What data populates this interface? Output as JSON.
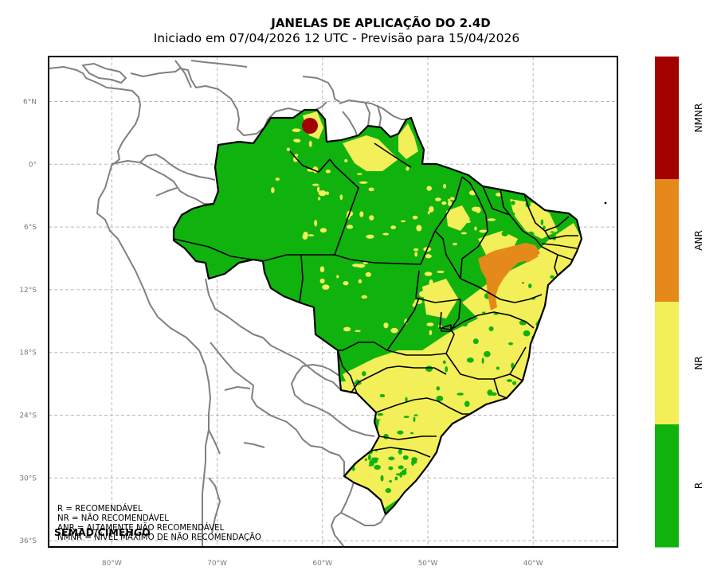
{
  "header": {
    "title": "JANELAS DE APLICAÇÃO DO 2.4D",
    "subtitle": "Iniciado em 07/04/2026 12 UTC - Previsão para 15/04/2026"
  },
  "axes": {
    "lat_labels": [
      "6°N",
      "0°",
      "6°S",
      "12°S",
      "18°S",
      "24°S",
      "30°S",
      "36°S"
    ],
    "lon_labels": [
      "80°W",
      "70°W",
      "60°W",
      "50°W",
      "40°W"
    ],
    "lat_values": [
      6,
      0,
      -6,
      -12,
      -18,
      -24,
      -30,
      -36
    ],
    "lon_values": [
      -80,
      -70,
      -60,
      -50,
      -40
    ],
    "lon_range": [
      -86,
      -32
    ],
    "lat_range": [
      -36.6,
      10.3
    ],
    "grid": true,
    "grid_style": "dashed"
  },
  "legend": {
    "lines": [
      "R = RECOMENDÁVEL",
      "NR = NÃO RECOMENDÁVEL",
      "ANR = ALTAMENTE NÃO RECOMENDÁVEL",
      "NMNR = NÍVEL MÁXIMO DE NÃO RECOMENDAÇÃO"
    ],
    "credit": "SEMAD/CIMEHGO"
  },
  "colorbar": {
    "categories": [
      {
        "label": "NMNR",
        "color": "#a30000"
      },
      {
        "label": "ANR",
        "color": "#e58a1a"
      },
      {
        "label": "NR",
        "color": "#f2ef58"
      },
      {
        "label": "R",
        "color": "#10b20e"
      }
    ]
  },
  "colors": {
    "R": "#10b20e",
    "NR": "#f2ef58",
    "ANR": "#e58a1a",
    "NMNR": "#a30000",
    "coast": "#808080",
    "border": "#000000"
  }
}
